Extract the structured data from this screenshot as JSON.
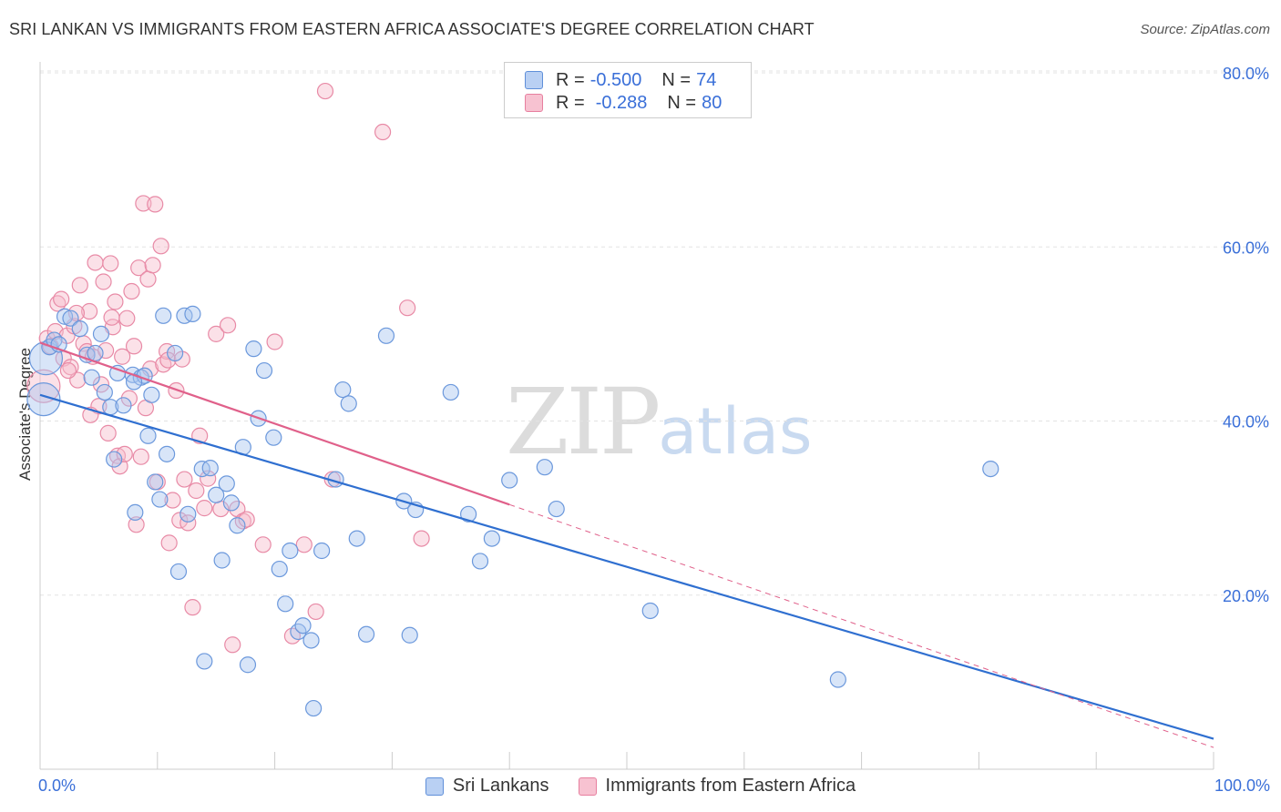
{
  "title": "SRI LANKAN VS IMMIGRANTS FROM EASTERN AFRICA ASSOCIATE'S DEGREE CORRELATION CHART",
  "source": "Source: ZipAtlas.com",
  "watermark": {
    "zip": "ZIP",
    "atlas": "atlas"
  },
  "legend": {
    "rows": [
      {
        "r_label": "R =",
        "r_value": "-0.500",
        "n_label": "N =",
        "n_value": "74",
        "fill": "#b9d0f3",
        "stroke": "#5f8fd9"
      },
      {
        "r_label": "R =",
        "r_value": "-0.288",
        "n_label": "N =",
        "n_value": "80",
        "fill": "#f7c2d1",
        "stroke": "#e77f9f"
      }
    ]
  },
  "bottom_legend": [
    "Sri Lankans",
    "Immigrants from Eastern Africa"
  ],
  "colors": {
    "blue_fill": "#a9c6ef",
    "blue_stroke": "#6b98dc",
    "blue_line": "#2f6fd0",
    "pink_fill": "#f6bccd",
    "pink_stroke": "#e88aa6",
    "pink_line": "#e0608a",
    "grid": "#e3e3e3",
    "axis_text": "#3a6fd8"
  },
  "chart_data": {
    "type": "scatter",
    "title": "SRI LANKAN VS IMMIGRANTS FROM EASTERN AFRICA ASSOCIATE'S DEGREE CORRELATION CHART",
    "xlabel": "",
    "ylabel": "Associate's Degree",
    "xlim": [
      0,
      100
    ],
    "ylim": [
      0,
      82
    ],
    "x_tick_labels": [
      {
        "value": 0,
        "label": "0.0%"
      },
      {
        "value": 100,
        "label": "100.0%"
      }
    ],
    "y_tick_labels": [
      {
        "value": 20,
        "label": "20.0%"
      },
      {
        "value": 40,
        "label": "40.0%"
      },
      {
        "value": 60,
        "label": "60.0%"
      },
      {
        "value": 80,
        "label": "80.0%"
      }
    ],
    "grid": "horizontal dashed",
    "legend_position": "top-center",
    "series": [
      {
        "name": "Sri Lankans",
        "trend": {
          "x": [
            0,
            100
          ],
          "y": [
            43.0,
            3.5
          ],
          "dashed_from": null
        },
        "points": [
          {
            "x": 0.3,
            "y": 42.5,
            "big": true
          },
          {
            "x": 0.5,
            "y": 47.2,
            "big": true
          },
          {
            "x": 0.8,
            "y": 48.5
          },
          {
            "x": 1.2,
            "y": 49.3
          },
          {
            "x": 1.6,
            "y": 48.8
          },
          {
            "x": 2.1,
            "y": 52.0
          },
          {
            "x": 2.6,
            "y": 51.8
          },
          {
            "x": 3.4,
            "y": 50.6
          },
          {
            "x": 4.0,
            "y": 47.6
          },
          {
            "x": 4.4,
            "y": 45.0
          },
          {
            "x": 4.7,
            "y": 47.8
          },
          {
            "x": 5.2,
            "y": 50.0
          },
          {
            "x": 5.5,
            "y": 43.3
          },
          {
            "x": 6.0,
            "y": 41.6
          },
          {
            "x": 6.3,
            "y": 35.6
          },
          {
            "x": 6.6,
            "y": 45.5
          },
          {
            "x": 7.1,
            "y": 41.8
          },
          {
            "x": 7.9,
            "y": 45.3
          },
          {
            "x": 8.1,
            "y": 29.5
          },
          {
            "x": 8.6,
            "y": 45.0
          },
          {
            "x": 8.9,
            "y": 45.2
          },
          {
            "x": 9.2,
            "y": 38.3
          },
          {
            "x": 9.5,
            "y": 43.0
          },
          {
            "x": 9.8,
            "y": 33.0
          },
          {
            "x": 10.2,
            "y": 31.0
          },
          {
            "x": 10.5,
            "y": 52.1
          },
          {
            "x": 10.8,
            "y": 36.2
          },
          {
            "x": 11.5,
            "y": 47.8
          },
          {
            "x": 11.8,
            "y": 22.7
          },
          {
            "x": 12.3,
            "y": 52.1
          },
          {
            "x": 12.6,
            "y": 29.3
          },
          {
            "x": 13.0,
            "y": 52.3
          },
          {
            "x": 13.8,
            "y": 34.5
          },
          {
            "x": 14.0,
            "y": 12.4
          },
          {
            "x": 14.5,
            "y": 34.6
          },
          {
            "x": 15.0,
            "y": 31.5
          },
          {
            "x": 15.5,
            "y": 24.0
          },
          {
            "x": 15.9,
            "y": 32.8
          },
          {
            "x": 16.3,
            "y": 30.6
          },
          {
            "x": 16.8,
            "y": 28.0
          },
          {
            "x": 17.3,
            "y": 37.0
          },
          {
            "x": 17.7,
            "y": 12.0
          },
          {
            "x": 18.2,
            "y": 48.3
          },
          {
            "x": 18.6,
            "y": 40.3
          },
          {
            "x": 19.1,
            "y": 45.8
          },
          {
            "x": 19.9,
            "y": 38.1
          },
          {
            "x": 20.4,
            "y": 23.0
          },
          {
            "x": 20.9,
            "y": 19.0
          },
          {
            "x": 21.3,
            "y": 25.1
          },
          {
            "x": 22.0,
            "y": 15.8
          },
          {
            "x": 22.4,
            "y": 16.5
          },
          {
            "x": 23.1,
            "y": 14.8
          },
          {
            "x": 24.0,
            "y": 25.1
          },
          {
            "x": 25.2,
            "y": 33.3
          },
          {
            "x": 25.8,
            "y": 43.6
          },
          {
            "x": 26.3,
            "y": 42.0
          },
          {
            "x": 27.0,
            "y": 26.5
          },
          {
            "x": 29.5,
            "y": 49.8
          },
          {
            "x": 31.0,
            "y": 30.8
          },
          {
            "x": 32.0,
            "y": 29.8
          },
          {
            "x": 35.0,
            "y": 43.3
          },
          {
            "x": 36.5,
            "y": 29.3
          },
          {
            "x": 37.5,
            "y": 23.9
          },
          {
            "x": 38.5,
            "y": 26.5
          },
          {
            "x": 40.0,
            "y": 33.2
          },
          {
            "x": 43.0,
            "y": 34.7
          },
          {
            "x": 44.0,
            "y": 29.9
          },
          {
            "x": 27.8,
            "y": 15.5
          },
          {
            "x": 23.3,
            "y": 7.0
          },
          {
            "x": 31.5,
            "y": 15.4
          },
          {
            "x": 52.0,
            "y": 18.2
          },
          {
            "x": 68.0,
            "y": 10.3
          },
          {
            "x": 81.0,
            "y": 34.5
          },
          {
            "x": 8.0,
            "y": 44.5
          }
        ]
      },
      {
        "name": "Immigrants from Eastern Africa",
        "trend": {
          "x": [
            0,
            100
          ],
          "y": [
            49.0,
            2.5
          ],
          "dashed_from": 40
        },
        "points": [
          {
            "x": 0.3,
            "y": 44.0,
            "big": true
          },
          {
            "x": 0.6,
            "y": 49.5
          },
          {
            "x": 0.9,
            "y": 48.6
          },
          {
            "x": 1.3,
            "y": 50.3
          },
          {
            "x": 1.5,
            "y": 53.5
          },
          {
            "x": 1.8,
            "y": 54.0
          },
          {
            "x": 2.0,
            "y": 47.2
          },
          {
            "x": 2.3,
            "y": 49.8
          },
          {
            "x": 2.6,
            "y": 46.2
          },
          {
            "x": 2.9,
            "y": 50.9
          },
          {
            "x": 3.2,
            "y": 44.7
          },
          {
            "x": 3.4,
            "y": 55.6
          },
          {
            "x": 3.7,
            "y": 48.9
          },
          {
            "x": 4.0,
            "y": 48.0
          },
          {
            "x": 4.2,
            "y": 52.6
          },
          {
            "x": 4.5,
            "y": 47.4
          },
          {
            "x": 4.7,
            "y": 58.2
          },
          {
            "x": 5.0,
            "y": 41.7
          },
          {
            "x": 5.2,
            "y": 44.2
          },
          {
            "x": 5.4,
            "y": 56.0
          },
          {
            "x": 5.6,
            "y": 48.1
          },
          {
            "x": 5.8,
            "y": 38.6
          },
          {
            "x": 6.0,
            "y": 58.1
          },
          {
            "x": 6.2,
            "y": 50.8
          },
          {
            "x": 6.4,
            "y": 53.7
          },
          {
            "x": 6.6,
            "y": 36.0
          },
          {
            "x": 6.8,
            "y": 34.8
          },
          {
            "x": 7.0,
            "y": 47.4
          },
          {
            "x": 7.2,
            "y": 36.2
          },
          {
            "x": 7.4,
            "y": 51.8
          },
          {
            "x": 7.6,
            "y": 42.6
          },
          {
            "x": 7.8,
            "y": 54.9
          },
          {
            "x": 8.0,
            "y": 48.6
          },
          {
            "x": 8.2,
            "y": 28.1
          },
          {
            "x": 8.4,
            "y": 57.6
          },
          {
            "x": 8.6,
            "y": 35.9
          },
          {
            "x": 8.8,
            "y": 65.0
          },
          {
            "x": 9.0,
            "y": 41.5
          },
          {
            "x": 9.2,
            "y": 56.3
          },
          {
            "x": 9.4,
            "y": 46.0
          },
          {
            "x": 9.6,
            "y": 57.9
          },
          {
            "x": 9.8,
            "y": 64.9
          },
          {
            "x": 10.0,
            "y": 33.0
          },
          {
            "x": 10.3,
            "y": 60.1
          },
          {
            "x": 10.5,
            "y": 46.5
          },
          {
            "x": 10.8,
            "y": 48.0
          },
          {
            "x": 11.0,
            "y": 26.0
          },
          {
            "x": 11.3,
            "y": 30.9
          },
          {
            "x": 11.6,
            "y": 43.5
          },
          {
            "x": 11.9,
            "y": 28.6
          },
          {
            "x": 12.3,
            "y": 33.3
          },
          {
            "x": 12.6,
            "y": 28.3
          },
          {
            "x": 13.0,
            "y": 18.6
          },
          {
            "x": 13.3,
            "y": 32.0
          },
          {
            "x": 13.6,
            "y": 38.3
          },
          {
            "x": 14.0,
            "y": 30.0
          },
          {
            "x": 14.3,
            "y": 33.4
          },
          {
            "x": 15.0,
            "y": 50.0
          },
          {
            "x": 15.4,
            "y": 29.9
          },
          {
            "x": 16.0,
            "y": 51.0
          },
          {
            "x": 16.4,
            "y": 14.3
          },
          {
            "x": 16.8,
            "y": 29.9
          },
          {
            "x": 17.3,
            "y": 28.5
          },
          {
            "x": 17.6,
            "y": 28.7
          },
          {
            "x": 19.0,
            "y": 25.8
          },
          {
            "x": 20.0,
            "y": 49.1
          },
          {
            "x": 21.5,
            "y": 15.3
          },
          {
            "x": 22.5,
            "y": 25.8
          },
          {
            "x": 23.5,
            "y": 18.1
          },
          {
            "x": 24.3,
            "y": 77.9
          },
          {
            "x": 24.9,
            "y": 33.3
          },
          {
            "x": 29.2,
            "y": 73.2
          },
          {
            "x": 31.3,
            "y": 53.0
          },
          {
            "x": 32.5,
            "y": 26.5
          },
          {
            "x": 10.9,
            "y": 47.0
          },
          {
            "x": 6.1,
            "y": 51.9
          },
          {
            "x": 4.3,
            "y": 40.7
          },
          {
            "x": 2.4,
            "y": 45.8
          },
          {
            "x": 3.1,
            "y": 52.4
          },
          {
            "x": 12.1,
            "y": 47.1
          }
        ]
      }
    ]
  }
}
